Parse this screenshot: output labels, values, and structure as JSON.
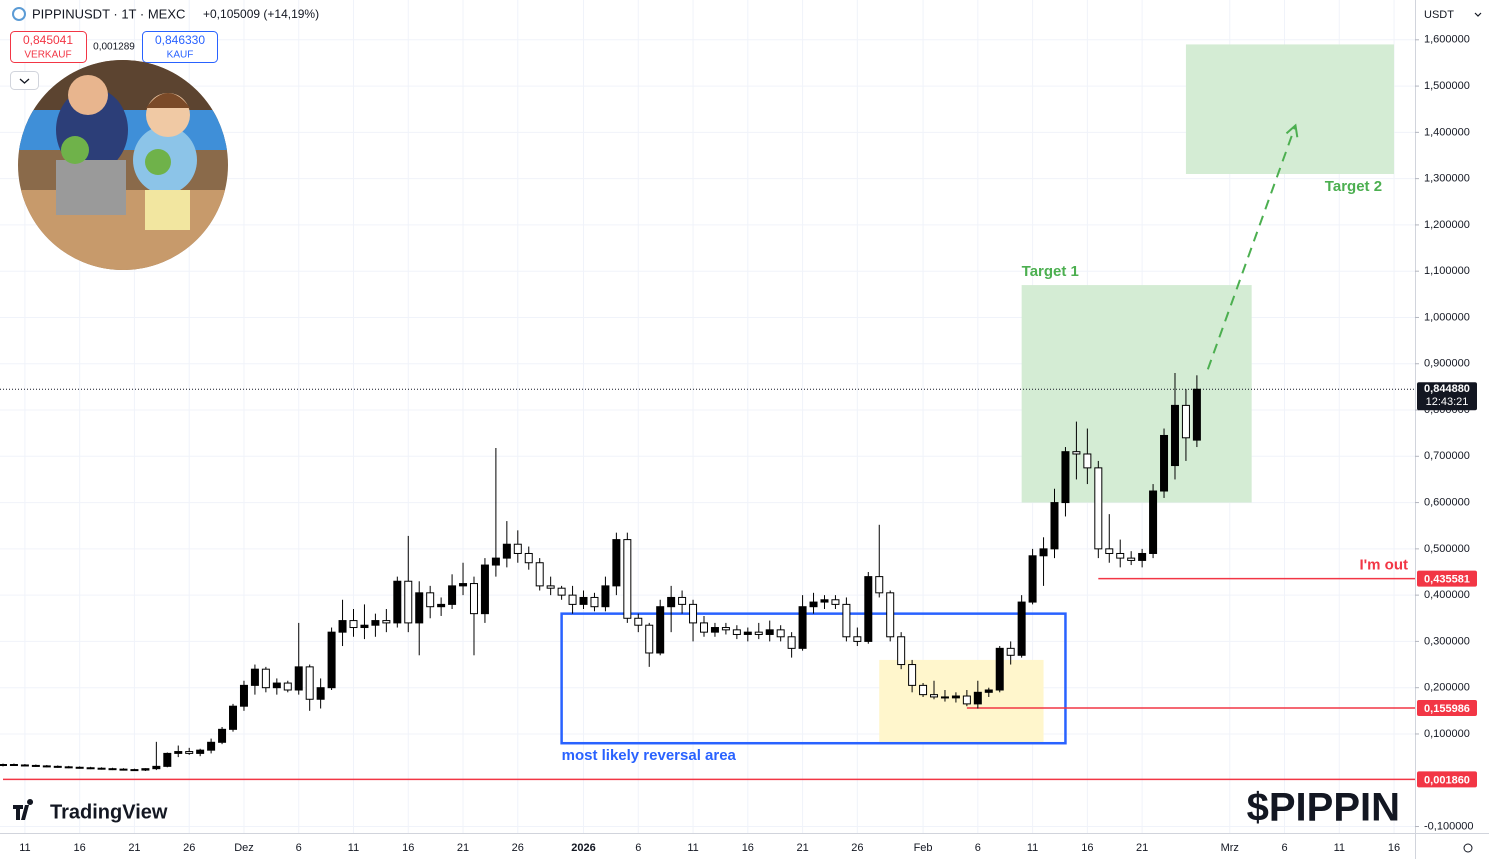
{
  "header": {
    "symbol": "PIPPINUSDT · 1T · MEXC",
    "change": "+0,105009 (+14,19%)",
    "sell_price": "0,845041",
    "sell": "VERKAUF",
    "spread": "0,001289",
    "buy_price": "0,846330",
    "buy": "KAUF",
    "currency": "USDT",
    "brand": "TradingView",
    "watermark": "$PIPPIN"
  },
  "chart_data": {
    "type": "candlestick",
    "up_color": "#000000",
    "down_color": "#ffffff",
    "wick_color": "#000000",
    "grid": true,
    "xlim": [
      "11-09",
      "03-17"
    ],
    "ylim": [
      -0.114,
      1.686
    ],
    "xticks": [
      {
        "value": "11-11",
        "label": "11"
      },
      {
        "value": "11-16",
        "label": "16"
      },
      {
        "value": "11-21",
        "label": "21"
      },
      {
        "value": "11-26",
        "label": "26"
      },
      {
        "value": "12-01",
        "label": "Dez"
      },
      {
        "value": "12-06",
        "label": "6"
      },
      {
        "value": "12-11",
        "label": "11"
      },
      {
        "value": "12-16",
        "label": "16"
      },
      {
        "value": "12-21",
        "label": "21"
      },
      {
        "value": "12-26",
        "label": "26"
      },
      {
        "value": "01-01",
        "label": "2026"
      },
      {
        "value": "01-06",
        "label": "6"
      },
      {
        "value": "01-11",
        "label": "11"
      },
      {
        "value": "01-16",
        "label": "16"
      },
      {
        "value": "01-21",
        "label": "21"
      },
      {
        "value": "01-26",
        "label": "26"
      },
      {
        "value": "02-01",
        "label": "Feb"
      },
      {
        "value": "02-06",
        "label": "6"
      },
      {
        "value": "02-11",
        "label": "11"
      },
      {
        "value": "02-16",
        "label": "16"
      },
      {
        "value": "02-21",
        "label": "21"
      },
      {
        "value": "03-01",
        "label": "Mrz"
      },
      {
        "value": "03-06",
        "label": "6"
      },
      {
        "value": "03-11",
        "label": "11"
      },
      {
        "value": "03-16",
        "label": "16"
      }
    ],
    "yticks": [
      {
        "value": 1.6,
        "label": "1,600000"
      },
      {
        "value": 1.5,
        "label": "1,500000"
      },
      {
        "value": 1.4,
        "label": "1,400000"
      },
      {
        "value": 1.3,
        "label": "1,300000"
      },
      {
        "value": 1.2,
        "label": "1,200000"
      },
      {
        "value": 1.1,
        "label": "1,100000"
      },
      {
        "value": 1.0,
        "label": "1,000000"
      },
      {
        "value": 0.9,
        "label": "0,900000"
      },
      {
        "value": 0.8,
        "label": "0,800000"
      },
      {
        "value": 0.7,
        "label": "0,700000"
      },
      {
        "value": 0.6,
        "label": "0,600000"
      },
      {
        "value": 0.5,
        "label": "0,500000"
      },
      {
        "value": 0.4,
        "label": "0,400000"
      },
      {
        "value": 0.3,
        "label": "0,300000"
      },
      {
        "value": 0.2,
        "label": "0,200000"
      },
      {
        "value": 0.1,
        "label": "0,100000"
      },
      {
        "value": -0.1,
        "label": "-0,100000"
      }
    ],
    "candles": [
      {
        "date": "11-09",
        "open": 0.033,
        "high": 0.036,
        "low": 0.03,
        "close": 0.034
      },
      {
        "date": "11-10",
        "open": 0.034,
        "high": 0.036,
        "low": 0.031,
        "close": 0.033
      },
      {
        "date": "11-11",
        "open": 0.033,
        "high": 0.035,
        "low": 0.03,
        "close": 0.032
      },
      {
        "date": "11-12",
        "open": 0.032,
        "high": 0.034,
        "low": 0.029,
        "close": 0.031
      },
      {
        "date": "11-13",
        "open": 0.031,
        "high": 0.033,
        "low": 0.028,
        "close": 0.03
      },
      {
        "date": "11-14",
        "open": 0.03,
        "high": 0.032,
        "low": 0.027,
        "close": 0.029
      },
      {
        "date": "11-15",
        "open": 0.029,
        "high": 0.031,
        "low": 0.026,
        "close": 0.028
      },
      {
        "date": "11-16",
        "open": 0.028,
        "high": 0.03,
        "low": 0.025,
        "close": 0.027
      },
      {
        "date": "11-17",
        "open": 0.027,
        "high": 0.029,
        "low": 0.024,
        "close": 0.026
      },
      {
        "date": "11-18",
        "open": 0.026,
        "high": 0.028,
        "low": 0.023,
        "close": 0.025
      },
      {
        "date": "11-19",
        "open": 0.025,
        "high": 0.027,
        "low": 0.022,
        "close": 0.024
      },
      {
        "date": "11-20",
        "open": 0.024,
        "high": 0.026,
        "low": 0.021,
        "close": 0.023
      },
      {
        "date": "11-21",
        "open": 0.023,
        "high": 0.025,
        "low": 0.02,
        "close": 0.022
      },
      {
        "date": "11-22",
        "open": 0.022,
        "high": 0.026,
        "low": 0.02,
        "close": 0.025
      },
      {
        "date": "11-23",
        "open": 0.025,
        "high": 0.083,
        "low": 0.022,
        "close": 0.03
      },
      {
        "date": "11-24",
        "open": 0.03,
        "high": 0.06,
        "low": 0.028,
        "close": 0.058
      },
      {
        "date": "11-25",
        "open": 0.058,
        "high": 0.075,
        "low": 0.05,
        "close": 0.062
      },
      {
        "date": "11-26",
        "open": 0.062,
        "high": 0.07,
        "low": 0.055,
        "close": 0.058
      },
      {
        "date": "11-27",
        "open": 0.058,
        "high": 0.068,
        "low": 0.052,
        "close": 0.065
      },
      {
        "date": "11-28",
        "open": 0.065,
        "high": 0.09,
        "low": 0.058,
        "close": 0.082
      },
      {
        "date": "11-29",
        "open": 0.082,
        "high": 0.115,
        "low": 0.078,
        "close": 0.11
      },
      {
        "date": "11-30",
        "open": 0.11,
        "high": 0.165,
        "low": 0.105,
        "close": 0.16
      },
      {
        "date": "12-01",
        "open": 0.16,
        "high": 0.215,
        "low": 0.15,
        "close": 0.205
      },
      {
        "date": "12-02",
        "open": 0.205,
        "high": 0.25,
        "low": 0.185,
        "close": 0.24
      },
      {
        "date": "12-03",
        "open": 0.24,
        "high": 0.245,
        "low": 0.19,
        "close": 0.2
      },
      {
        "date": "12-04",
        "open": 0.2,
        "high": 0.22,
        "low": 0.185,
        "close": 0.21
      },
      {
        "date": "12-05",
        "open": 0.21,
        "high": 0.215,
        "low": 0.19,
        "close": 0.195
      },
      {
        "date": "12-06",
        "open": 0.195,
        "high": 0.34,
        "low": 0.185,
        "close": 0.245
      },
      {
        "date": "12-07",
        "open": 0.245,
        "high": 0.25,
        "low": 0.15,
        "close": 0.175
      },
      {
        "date": "12-08",
        "open": 0.175,
        "high": 0.22,
        "low": 0.155,
        "close": 0.2
      },
      {
        "date": "12-09",
        "open": 0.2,
        "high": 0.33,
        "low": 0.195,
        "close": 0.32
      },
      {
        "date": "12-10",
        "open": 0.32,
        "high": 0.39,
        "low": 0.29,
        "close": 0.345
      },
      {
        "date": "12-11",
        "open": 0.345,
        "high": 0.37,
        "low": 0.31,
        "close": 0.33
      },
      {
        "date": "12-12",
        "open": 0.33,
        "high": 0.38,
        "low": 0.305,
        "close": 0.335
      },
      {
        "date": "12-13",
        "open": 0.335,
        "high": 0.36,
        "low": 0.31,
        "close": 0.345
      },
      {
        "date": "12-14",
        "open": 0.345,
        "high": 0.37,
        "low": 0.32,
        "close": 0.34
      },
      {
        "date": "12-15",
        "open": 0.34,
        "high": 0.44,
        "low": 0.33,
        "close": 0.43
      },
      {
        "date": "12-16",
        "open": 0.43,
        "high": 0.528,
        "low": 0.32,
        "close": 0.34
      },
      {
        "date": "12-17",
        "open": 0.34,
        "high": 0.43,
        "low": 0.27,
        "close": 0.405
      },
      {
        "date": "12-18",
        "open": 0.405,
        "high": 0.42,
        "low": 0.35,
        "close": 0.375
      },
      {
        "date": "12-19",
        "open": 0.375,
        "high": 0.395,
        "low": 0.355,
        "close": 0.38
      },
      {
        "date": "12-20",
        "open": 0.38,
        "high": 0.445,
        "low": 0.37,
        "close": 0.42
      },
      {
        "date": "12-21",
        "open": 0.42,
        "high": 0.47,
        "low": 0.4,
        "close": 0.425
      },
      {
        "date": "12-22",
        "open": 0.425,
        "high": 0.44,
        "low": 0.27,
        "close": 0.36
      },
      {
        "date": "12-23",
        "open": 0.36,
        "high": 0.48,
        "low": 0.34,
        "close": 0.465
      },
      {
        "date": "12-24",
        "open": 0.465,
        "high": 0.718,
        "low": 0.44,
        "close": 0.48
      },
      {
        "date": "12-25",
        "open": 0.48,
        "high": 0.56,
        "low": 0.46,
        "close": 0.51
      },
      {
        "date": "12-26",
        "open": 0.51,
        "high": 0.54,
        "low": 0.47,
        "close": 0.49
      },
      {
        "date": "12-27",
        "open": 0.49,
        "high": 0.505,
        "low": 0.455,
        "close": 0.47
      },
      {
        "date": "12-28",
        "open": 0.47,
        "high": 0.48,
        "low": 0.41,
        "close": 0.42
      },
      {
        "date": "12-29",
        "open": 0.42,
        "high": 0.44,
        "low": 0.4,
        "close": 0.415
      },
      {
        "date": "12-30",
        "open": 0.415,
        "high": 0.42,
        "low": 0.39,
        "close": 0.4
      },
      {
        "date": "12-31",
        "open": 0.4,
        "high": 0.42,
        "low": 0.36,
        "close": 0.38
      },
      {
        "date": "01-01",
        "open": 0.38,
        "high": 0.41,
        "low": 0.37,
        "close": 0.395
      },
      {
        "date": "01-02",
        "open": 0.395,
        "high": 0.405,
        "low": 0.365,
        "close": 0.375
      },
      {
        "date": "01-03",
        "open": 0.375,
        "high": 0.44,
        "low": 0.365,
        "close": 0.42
      },
      {
        "date": "01-04",
        "open": 0.42,
        "high": 0.535,
        "low": 0.4,
        "close": 0.52
      },
      {
        "date": "01-05",
        "open": 0.52,
        "high": 0.535,
        "low": 0.34,
        "close": 0.35
      },
      {
        "date": "01-06",
        "open": 0.35,
        "high": 0.36,
        "low": 0.32,
        "close": 0.335
      },
      {
        "date": "01-07",
        "open": 0.335,
        "high": 0.34,
        "low": 0.245,
        "close": 0.275
      },
      {
        "date": "01-08",
        "open": 0.275,
        "high": 0.39,
        "low": 0.27,
        "close": 0.375
      },
      {
        "date": "01-09",
        "open": 0.375,
        "high": 0.42,
        "low": 0.32,
        "close": 0.395
      },
      {
        "date": "01-10",
        "open": 0.395,
        "high": 0.41,
        "low": 0.36,
        "close": 0.38
      },
      {
        "date": "01-11",
        "open": 0.38,
        "high": 0.39,
        "low": 0.3,
        "close": 0.34
      },
      {
        "date": "01-12",
        "open": 0.34,
        "high": 0.355,
        "low": 0.31,
        "close": 0.32
      },
      {
        "date": "01-13",
        "open": 0.32,
        "high": 0.34,
        "low": 0.31,
        "close": 0.33
      },
      {
        "date": "01-14",
        "open": 0.33,
        "high": 0.34,
        "low": 0.315,
        "close": 0.325
      },
      {
        "date": "01-15",
        "open": 0.325,
        "high": 0.335,
        "low": 0.305,
        "close": 0.315
      },
      {
        "date": "01-16",
        "open": 0.315,
        "high": 0.33,
        "low": 0.3,
        "close": 0.32
      },
      {
        "date": "01-17",
        "open": 0.32,
        "high": 0.34,
        "low": 0.305,
        "close": 0.315
      },
      {
        "date": "01-18",
        "open": 0.315,
        "high": 0.345,
        "low": 0.3,
        "close": 0.325
      },
      {
        "date": "01-19",
        "open": 0.325,
        "high": 0.335,
        "low": 0.3,
        "close": 0.31
      },
      {
        "date": "01-20",
        "open": 0.31,
        "high": 0.32,
        "low": 0.265,
        "close": 0.285
      },
      {
        "date": "01-21",
        "open": 0.285,
        "high": 0.4,
        "low": 0.28,
        "close": 0.375
      },
      {
        "date": "01-22",
        "open": 0.375,
        "high": 0.405,
        "low": 0.36,
        "close": 0.385
      },
      {
        "date": "01-23",
        "open": 0.385,
        "high": 0.4,
        "low": 0.37,
        "close": 0.39
      },
      {
        "date": "01-24",
        "open": 0.39,
        "high": 0.4,
        "low": 0.37,
        "close": 0.38
      },
      {
        "date": "01-25",
        "open": 0.38,
        "high": 0.395,
        "low": 0.3,
        "close": 0.31
      },
      {
        "date": "01-26",
        "open": 0.31,
        "high": 0.33,
        "low": 0.29,
        "close": 0.3
      },
      {
        "date": "01-27",
        "open": 0.3,
        "high": 0.45,
        "low": 0.295,
        "close": 0.44
      },
      {
        "date": "01-28",
        "open": 0.44,
        "high": 0.552,
        "low": 0.395,
        "close": 0.405
      },
      {
        "date": "01-29",
        "open": 0.405,
        "high": 0.41,
        "low": 0.3,
        "close": 0.31
      },
      {
        "date": "01-30",
        "open": 0.31,
        "high": 0.32,
        "low": 0.24,
        "close": 0.25
      },
      {
        "date": "01-31",
        "open": 0.25,
        "high": 0.26,
        "low": 0.19,
        "close": 0.205
      },
      {
        "date": "02-01",
        "open": 0.205,
        "high": 0.21,
        "low": 0.18,
        "close": 0.185
      },
      {
        "date": "02-02",
        "open": 0.185,
        "high": 0.215,
        "low": 0.175,
        "close": 0.18
      },
      {
        "date": "02-03",
        "open": 0.18,
        "high": 0.195,
        "low": 0.17,
        "close": 0.178
      },
      {
        "date": "02-04",
        "open": 0.178,
        "high": 0.19,
        "low": 0.168,
        "close": 0.182
      },
      {
        "date": "02-05",
        "open": 0.182,
        "high": 0.195,
        "low": 0.16,
        "close": 0.165
      },
      {
        "date": "02-06",
        "open": 0.165,
        "high": 0.215,
        "low": 0.155,
        "close": 0.19
      },
      {
        "date": "02-07",
        "open": 0.19,
        "high": 0.2,
        "low": 0.18,
        "close": 0.195
      },
      {
        "date": "02-08",
        "open": 0.195,
        "high": 0.29,
        "low": 0.19,
        "close": 0.285
      },
      {
        "date": "02-09",
        "open": 0.285,
        "high": 0.3,
        "low": 0.25,
        "close": 0.27
      },
      {
        "date": "02-10",
        "open": 0.27,
        "high": 0.4,
        "low": 0.265,
        "close": 0.385
      },
      {
        "date": "02-11",
        "open": 0.385,
        "high": 0.5,
        "low": 0.38,
        "close": 0.485
      },
      {
        "date": "02-12",
        "open": 0.485,
        "high": 0.525,
        "low": 0.42,
        "close": 0.5
      },
      {
        "date": "02-13",
        "open": 0.5,
        "high": 0.63,
        "low": 0.48,
        "close": 0.6
      },
      {
        "date": "02-14",
        "open": 0.6,
        "high": 0.72,
        "low": 0.57,
        "close": 0.71
      },
      {
        "date": "02-15",
        "open": 0.71,
        "high": 0.775,
        "low": 0.65,
        "close": 0.705
      },
      {
        "date": "02-16",
        "open": 0.705,
        "high": 0.76,
        "low": 0.64,
        "close": 0.675
      },
      {
        "date": "02-17",
        "open": 0.675,
        "high": 0.69,
        "low": 0.48,
        "close": 0.5
      },
      {
        "date": "02-18",
        "open": 0.5,
        "high": 0.575,
        "low": 0.47,
        "close": 0.49
      },
      {
        "date": "02-19",
        "open": 0.49,
        "high": 0.52,
        "low": 0.46,
        "close": 0.48
      },
      {
        "date": "02-20",
        "open": 0.48,
        "high": 0.495,
        "low": 0.465,
        "close": 0.475
      },
      {
        "date": "02-21",
        "open": 0.475,
        "high": 0.5,
        "low": 0.46,
        "close": 0.49
      },
      {
        "date": "02-22",
        "open": 0.49,
        "high": 0.64,
        "low": 0.48,
        "close": 0.625
      },
      {
        "date": "02-23",
        "open": 0.625,
        "high": 0.76,
        "low": 0.61,
        "close": 0.745
      },
      {
        "date": "02-24",
        "open": 0.68,
        "high": 0.88,
        "low": 0.65,
        "close": 0.81
      },
      {
        "date": "02-25",
        "open": 0.81,
        "high": 0.845,
        "low": 0.69,
        "close": 0.74
      },
      {
        "date": "02-26",
        "open": 0.735,
        "high": 0.875,
        "low": 0.72,
        "close": 0.84488
      }
    ],
    "current_price": {
      "value": 0.84488,
      "label": "0,844880",
      "countdown": "12:43:21"
    },
    "levels": [
      {
        "value": 0.435581,
        "label": "0,435581",
        "from": "02-17",
        "text": "I'm out",
        "color": "#f23645"
      },
      {
        "value": 0.155986,
        "label": "0,155986",
        "from": "02-05",
        "color": "#f23645"
      },
      {
        "value": 0.00186,
        "label": "0,001860",
        "from": "11-09",
        "color": "#f23645"
      }
    ],
    "boxes": [
      {
        "x": [
          "01-28",
          "02-12"
        ],
        "y": [
          0.08,
          0.26
        ],
        "fill": "#fff6cc"
      },
      {
        "x": [
          "12-30",
          "02-14"
        ],
        "y": [
          0.08,
          0.36
        ],
        "stroke": "#2962ff",
        "label": "most likely reversal area",
        "label_position": "bottom-left"
      },
      {
        "x": [
          "02-10",
          "03-03"
        ],
        "y": [
          0.6,
          1.07
        ],
        "fill": "#d4ecd4",
        "label": "Target 1",
        "label_color": "#4caf50",
        "label_position": "top-left"
      },
      {
        "x": [
          "02-25",
          "03-16"
        ],
        "y": [
          1.31,
          1.59
        ],
        "fill": "#d4ecd4",
        "label": "Target 2",
        "label_color": "#4caf50",
        "label_position": "bottom-right"
      }
    ],
    "arrow": {
      "x": [
        "02-27",
        "03-07"
      ],
      "y": [
        0.888,
        1.415
      ],
      "color": "#4caf50"
    }
  }
}
